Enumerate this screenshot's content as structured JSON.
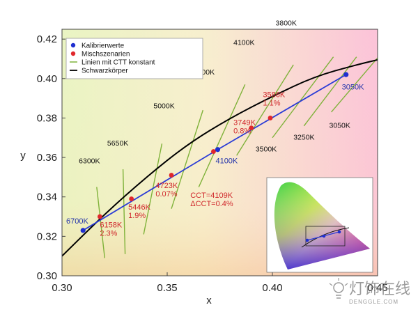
{
  "chart_data": {
    "type": "scatter",
    "xlabel": "x",
    "ylabel": "y",
    "xlim": [
      0.3,
      0.45
    ],
    "ylim": [
      0.3,
      0.425
    ],
    "x_ticks": [
      "0.30",
      "0.35",
      "0.40",
      "0.45"
    ],
    "y_ticks": [
      "0.30",
      "0.32",
      "0.34",
      "0.36",
      "0.38",
      "0.40",
      "0.42"
    ],
    "grid": false,
    "legend_position": "top-left",
    "colors": {
      "calibration": "#1f2fd0",
      "mix": "#e0282c",
      "isotherm": "#7fb23a",
      "planckian": "#000000",
      "mixline": "#2a3bd6"
    },
    "legend": [
      {
        "label": "Kalibrierwerte",
        "marker": "dot-blue"
      },
      {
        "label": "Mischszenarien",
        "marker": "dot-red"
      },
      {
        "label": "Linien mit CTT konstant",
        "marker": "line-green"
      },
      {
        "label": "Schwarzkörper",
        "marker": "line-black"
      }
    ],
    "series": [
      {
        "name": "Kalibrierwerte",
        "points": [
          {
            "x": 0.31,
            "y": 0.323
          },
          {
            "x": 0.374,
            "y": 0.364
          },
          {
            "x": 0.435,
            "y": 0.402
          }
        ]
      },
      {
        "name": "Mischszenarien",
        "points": [
          {
            "x": 0.318,
            "y": 0.33
          },
          {
            "x": 0.333,
            "y": 0.339
          },
          {
            "x": 0.352,
            "y": 0.351
          },
          {
            "x": 0.372,
            "y": 0.363
          },
          {
            "x": 0.39,
            "y": 0.375
          },
          {
            "x": 0.399,
            "y": 0.38
          }
        ]
      },
      {
        "name": "Schwarzkörper",
        "points": [
          {
            "x": 0.3,
            "y": 0.31
          },
          {
            "x": 0.32,
            "y": 0.331
          },
          {
            "x": 0.34,
            "y": 0.35
          },
          {
            "x": 0.36,
            "y": 0.367
          },
          {
            "x": 0.38,
            "y": 0.38
          },
          {
            "x": 0.4,
            "y": 0.391
          },
          {
            "x": 0.42,
            "y": 0.401
          },
          {
            "x": 0.44,
            "y": 0.407
          },
          {
            "x": 0.452,
            "y": 0.41
          }
        ]
      }
    ],
    "isotherms": [
      {
        "label": "6300K",
        "x1": 0.3165,
        "y1": 0.345,
        "x2": 0.3203,
        "y2": 0.309
      },
      {
        "label": "5650K",
        "x1": 0.329,
        "y1": 0.354,
        "x2": 0.33,
        "y2": 0.311
      },
      {
        "label": "5000K",
        "x1": 0.3475,
        "y1": 0.367,
        "x2": 0.3388,
        "y2": 0.321
      },
      {
        "label": "4500K",
        "x1": 0.367,
        "y1": 0.384,
        "x2": 0.352,
        "y2": 0.334
      },
      {
        "label": "4100K",
        "x1": 0.387,
        "y1": 0.397,
        "x2": 0.365,
        "y2": 0.345
      },
      {
        "label": "3800K",
        "x1": 0.41,
        "y1": 0.407,
        "x2": 0.383,
        "y2": 0.361
      },
      {
        "label": "3500K",
        "x1": 0.429,
        "y1": 0.411,
        "x2": 0.4,
        "y2": 0.37
      },
      {
        "label": "3250K",
        "x1": 0.44,
        "y1": 0.411,
        "x2": 0.415,
        "y2": 0.376
      },
      {
        "label": "3050K",
        "x1": 0.452,
        "y1": 0.413,
        "x2": 0.428,
        "y2": 0.383
      }
    ],
    "isotherm_labels": [
      {
        "text": "6300K",
        "x": 0.308,
        "y": 0.357
      },
      {
        "text": "5650K",
        "x": 0.3215,
        "y": 0.366
      },
      {
        "text": "5000K",
        "x": 0.3435,
        "y": 0.385
      },
      {
        "text": "4500K",
        "x": 0.3625,
        "y": 0.402
      },
      {
        "text": "4100K",
        "x": 0.3815,
        "y": 0.417
      },
      {
        "text": "3800K",
        "x": 0.4015,
        "y": 0.427
      },
      {
        "text": "3500K",
        "x": 0.392,
        "y": 0.363
      },
      {
        "text": "3250K",
        "x": 0.41,
        "y": 0.369
      },
      {
        "text": "3050K",
        "x": 0.427,
        "y": 0.375
      }
    ],
    "annotations": [
      {
        "lines": [
          "6700K"
        ],
        "x": 0.302,
        "y": 0.3265,
        "color": "blue"
      },
      {
        "lines": [
          "6158K",
          "2.3%"
        ],
        "x": 0.318,
        "y": 0.3245,
        "color": "red"
      },
      {
        "lines": [
          "5446K",
          "1.9%"
        ],
        "x": 0.3315,
        "y": 0.3335,
        "color": "red"
      },
      {
        "lines": [
          "4723K",
          "0.07%"
        ],
        "x": 0.3445,
        "y": 0.3445,
        "color": "red"
      },
      {
        "lines": [
          "CCT=4109K",
          "ΔCCT=0.4%"
        ],
        "x": 0.361,
        "y": 0.3395,
        "color": "red"
      },
      {
        "lines": [
          "4100K"
        ],
        "x": 0.373,
        "y": 0.357,
        "color": "blue"
      },
      {
        "lines": [
          "3749K",
          "0.8%"
        ],
        "x": 0.3815,
        "y": 0.3765,
        "color": "red"
      },
      {
        "lines": [
          "3586K",
          "1.1%"
        ],
        "x": 0.3955,
        "y": 0.3905,
        "color": "red"
      },
      {
        "lines": [
          "3050K"
        ],
        "x": 0.433,
        "y": 0.3945,
        "color": "blue"
      }
    ]
  },
  "watermark": {
    "text": "灯饰在线",
    "subtext": "DENGGLE.COM"
  }
}
